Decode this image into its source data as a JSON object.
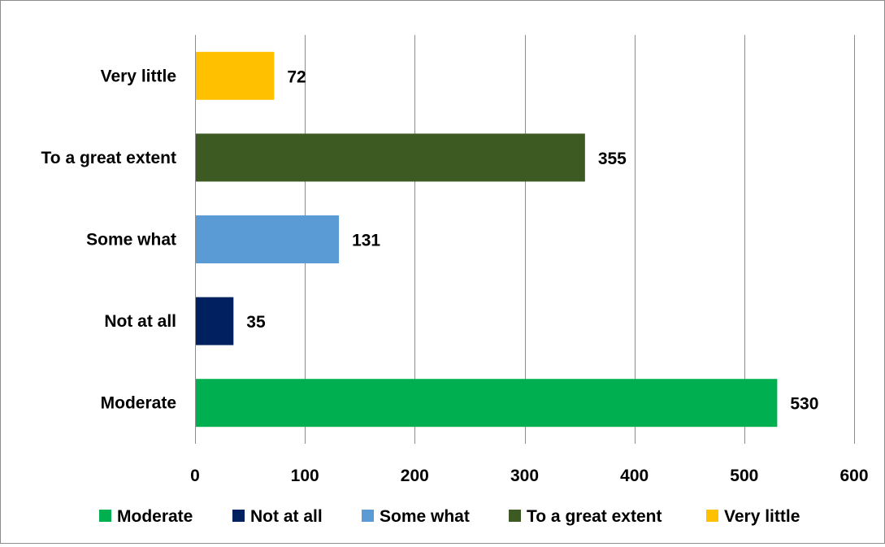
{
  "chart_data": {
    "type": "bar",
    "orientation": "horizontal",
    "categories": [
      "Moderate",
      "Not at all",
      "Some what",
      "To a great extent",
      "Very little"
    ],
    "values": [
      530,
      35,
      131,
      355,
      72
    ],
    "colors": [
      "#00B050",
      "#002060",
      "#5B9BD5",
      "#3D5A22",
      "#FFC000"
    ],
    "xlim": [
      0,
      600
    ],
    "x_ticks": [
      0,
      100,
      200,
      300,
      400,
      500,
      600
    ],
    "grid": "vertical",
    "data_labels": true,
    "legend": {
      "position": "bottom",
      "entries": [
        "Moderate",
        "Not at all",
        "Some what",
        "To a great extent",
        "Very little"
      ]
    },
    "title": "",
    "xlabel": "",
    "ylabel": ""
  }
}
